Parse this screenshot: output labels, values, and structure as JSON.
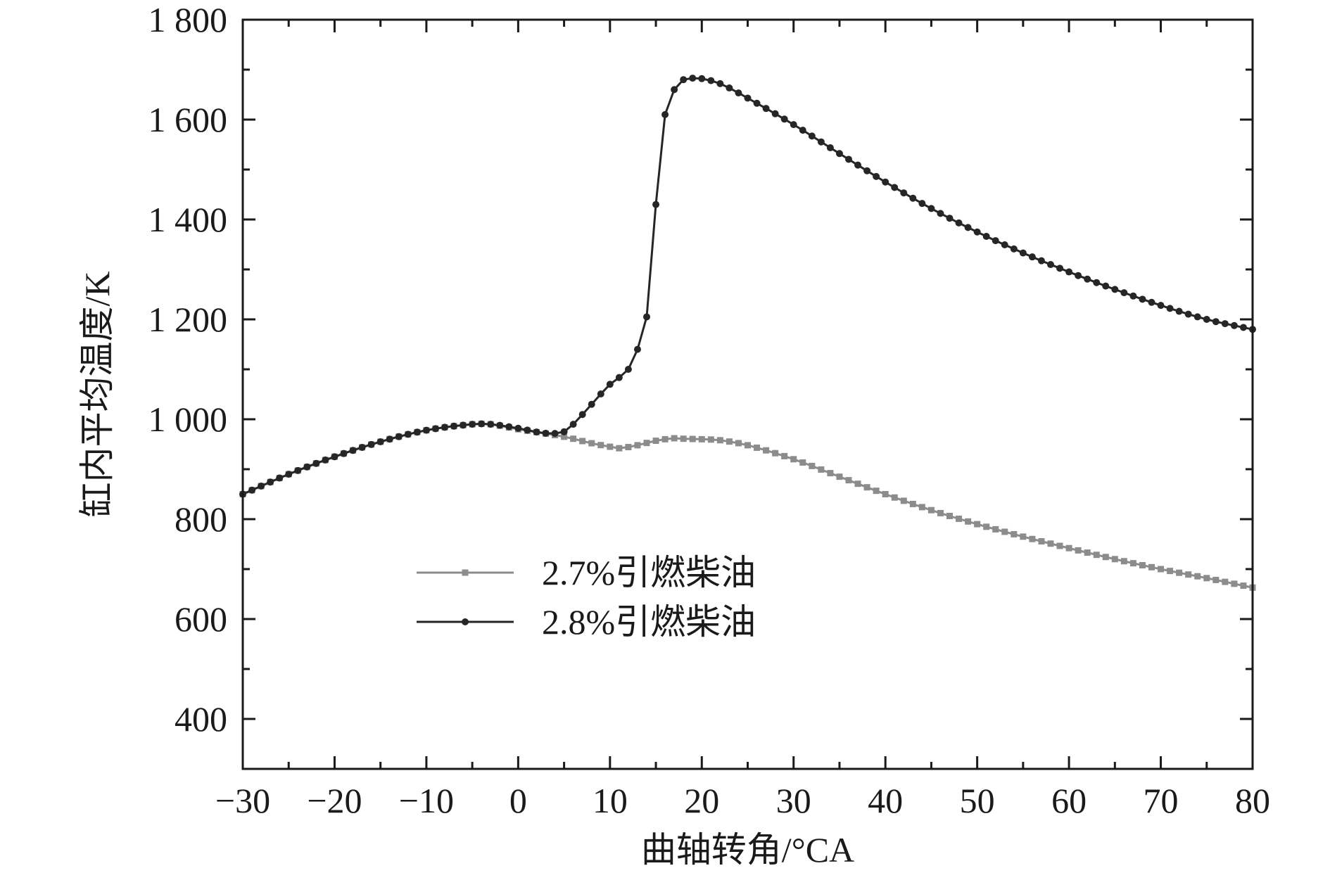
{
  "chart_data": {
    "type": "line",
    "title": "",
    "xlabel": "曲轴转角/°CA",
    "ylabel": "缸内平均温度/K",
    "xlim": [
      -30,
      80
    ],
    "ylim": [
      300,
      1800
    ],
    "xticks": [
      -30,
      -20,
      -10,
      0,
      10,
      20,
      30,
      40,
      50,
      60,
      70,
      80
    ],
    "xtick_labels": [
      "−30",
      "−20",
      "−10",
      "0",
      "10",
      "20",
      "30",
      "40",
      "50",
      "60",
      "70",
      "80"
    ],
    "yticks": [
      400,
      600,
      800,
      1000,
      1200,
      1400,
      1600,
      1800
    ],
    "ytick_labels": [
      "400",
      "600",
      "800",
      "1 000",
      "1 200",
      "1 400",
      "1 600",
      "1 800"
    ],
    "grid": false,
    "legend_position": "lower-center",
    "series": [
      {
        "name": "2.7%引燃柴油",
        "color": "#8c8c8c",
        "marker": "square",
        "x": [
          -30,
          -25,
          -20,
          -15,
          -10,
          -5,
          -3,
          0,
          5,
          8,
          10,
          11,
          13,
          15,
          17,
          18,
          20,
          22,
          25,
          30,
          35,
          40,
          45,
          50,
          55,
          60,
          65,
          70,
          75,
          80
        ],
        "y": [
          850,
          890,
          925,
          955,
          978,
          990,
          990,
          980,
          965,
          952,
          945,
          942,
          948,
          957,
          962,
          961,
          960,
          958,
          948,
          920,
          885,
          850,
          818,
          790,
          765,
          742,
          720,
          700,
          682,
          663
        ]
      },
      {
        "name": "2.8%引燃柴油",
        "color": "#262626",
        "marker": "circle",
        "x": [
          -30,
          -25,
          -20,
          -15,
          -10,
          -5,
          -3,
          0,
          3,
          5,
          6,
          8,
          10,
          12,
          13,
          14,
          15,
          16,
          17,
          18,
          19,
          20,
          22,
          25,
          30,
          35,
          40,
          45,
          50,
          55,
          60,
          65,
          70,
          75,
          80
        ],
        "y": [
          850,
          890,
          925,
          955,
          978,
          990,
          990,
          982,
          972,
          975,
          990,
          1030,
          1070,
          1100,
          1140,
          1205,
          1430,
          1610,
          1660,
          1680,
          1683,
          1682,
          1672,
          1643,
          1590,
          1532,
          1475,
          1422,
          1375,
          1333,
          1295,
          1260,
          1228,
          1200,
          1180
        ]
      }
    ]
  }
}
